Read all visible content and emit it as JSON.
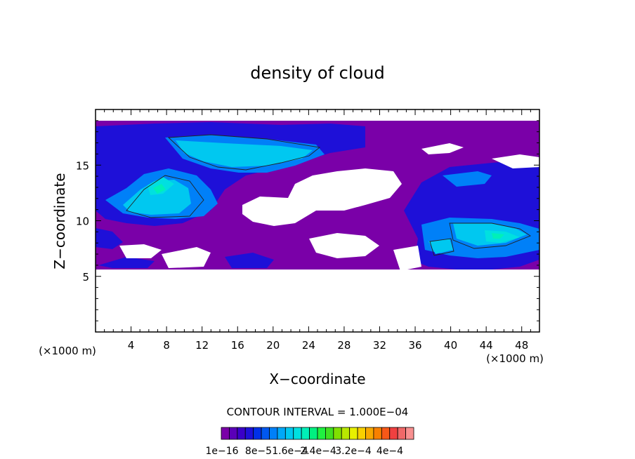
{
  "chart_data": {
    "type": "heatmap",
    "title": "density of cloud",
    "xlabel": "X−coordinate",
    "ylabel": "Z−coordinate",
    "x_unit_left": "(×1000 m)",
    "x_unit_right": "(×1000 m)",
    "xlim": [
      0,
      50
    ],
    "ylim": [
      0,
      20
    ],
    "xticks": [
      4,
      8,
      12,
      16,
      20,
      24,
      28,
      32,
      36,
      40,
      44,
      48
    ],
    "xtick_labels": [
      "4",
      "8",
      "12",
      "16",
      "20",
      "24",
      "28",
      "32",
      "36",
      "40",
      "44",
      "48"
    ],
    "yticks": [
      5,
      10,
      15
    ],
    "ytick_labels": [
      "5",
      "10",
      "15"
    ],
    "contour_interval_text": "CONTOUR INTERVAL = 1.000E−04",
    "colorbar": {
      "labels": [
        "1e−16",
        "8e−5",
        "1.6e−4",
        "2.4e−4",
        "3.2e−4",
        "4e−4"
      ],
      "colors": [
        "#7a00a8",
        "#5a00b8",
        "#3a00c8",
        "#1e10d8",
        "#0030e8",
        "#0058f0",
        "#0080f8",
        "#00a8f8",
        "#00c8f0",
        "#00e0e0",
        "#00f0b8",
        "#00f080",
        "#20f040",
        "#40e020",
        "#80e000",
        "#b8e800",
        "#e8f000",
        "#f8d000",
        "#f8a800",
        "#f88000",
        "#f85818",
        "#f04040",
        "#f06868",
        "#f89090"
      ]
    },
    "regions": [
      {
        "level": "purple",
        "color": "#7a00a8"
      },
      {
        "level": "blue",
        "color": "#1e10d8"
      },
      {
        "level": "lightblue",
        "color": "#0080f8"
      },
      {
        "level": "cyan",
        "color": "#00c8f0"
      },
      {
        "level": "aqua",
        "color": "#00e0e0"
      },
      {
        "level": "green",
        "color": "#00f0b8"
      }
    ]
  }
}
